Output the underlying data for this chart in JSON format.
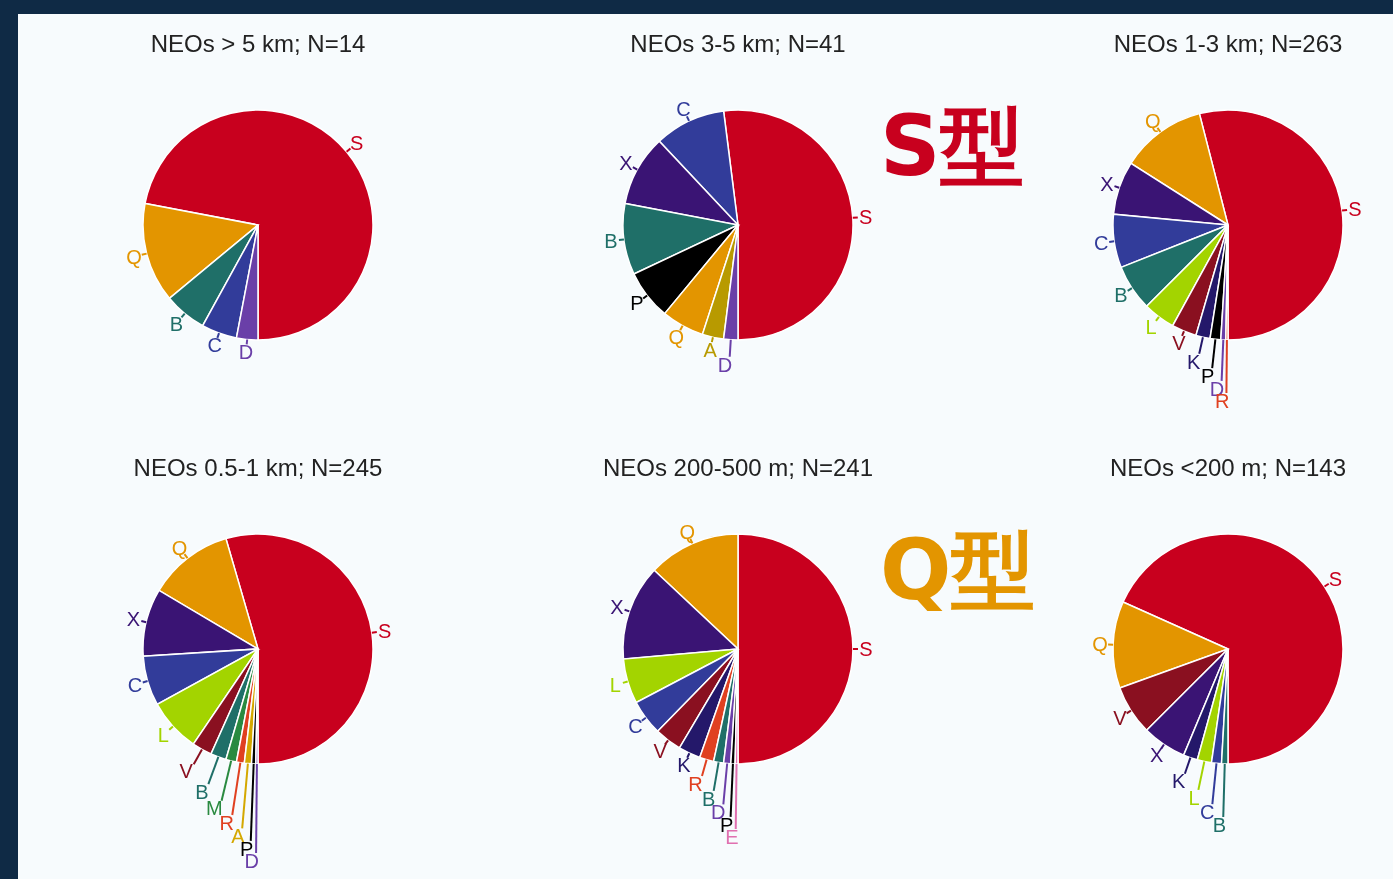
{
  "chart_data": [
    {
      "type": "pie",
      "title": "NEOs > 5 km;  N=14",
      "categories": [
        "S",
        "Q",
        "B",
        "C",
        "D"
      ],
      "values": [
        72,
        14,
        6,
        5,
        3
      ],
      "colors": [
        "#c8001e",
        "#e39500",
        "#1f6f68",
        "#323c9a",
        "#6a3fa8"
      ]
    },
    {
      "type": "pie",
      "title": "NEOs 3-5 km;  N=41",
      "categories": [
        "S",
        "C",
        "X",
        "B",
        "P",
        "Q",
        "A",
        "D"
      ],
      "values": [
        52,
        10,
        10,
        10,
        7,
        6,
        3,
        2
      ],
      "colors": [
        "#c8001e",
        "#323c9a",
        "#3a1474",
        "#1f6f68",
        "#000000",
        "#e39500",
        "#b89a00",
        "#6a3fa8"
      ],
      "annotations": [
        "S型"
      ]
    },
    {
      "type": "pie",
      "title": "NEOs 1-3 km;  N=263",
      "categories": [
        "S",
        "Q",
        "X",
        "C",
        "B",
        "L",
        "V",
        "K",
        "P",
        "D",
        "R"
      ],
      "values": [
        54,
        12,
        7.5,
        7.5,
        6.5,
        4.5,
        3.5,
        2,
        1.5,
        0.7,
        0.3
      ],
      "colors": [
        "#c8001e",
        "#e39500",
        "#3a1474",
        "#323c9a",
        "#1f6f68",
        "#a3d400",
        "#8a1020",
        "#24186a",
        "#000000",
        "#6a3fa8",
        "#e04020"
      ]
    },
    {
      "type": "pie",
      "title": "NEOs 0.5-1 km;  N=245",
      "categories": [
        "S",
        "Q",
        "X",
        "C",
        "L",
        "V",
        "B",
        "M",
        "R",
        "A",
        "P",
        "D"
      ],
      "values": [
        54.5,
        12,
        9.5,
        7,
        7.5,
        2.8,
        2.2,
        1.5,
        1.1,
        1,
        0.6,
        0.3
      ],
      "colors": [
        "#c8001e",
        "#e39500",
        "#3a1474",
        "#323c9a",
        "#a3d400",
        "#8a1020",
        "#1f6f68",
        "#2a8a40",
        "#e04020",
        "#d4a800",
        "#000000",
        "#6a3fa8"
      ]
    },
    {
      "type": "pie",
      "title": "NEOs 200-500 m;  N=241",
      "categories": [
        "S",
        "Q",
        "X",
        "L",
        "C",
        "V",
        "K",
        "R",
        "B",
        "D",
        "P",
        "E"
      ],
      "values": [
        50,
        13,
        13.4,
        6.3,
        5,
        3.8,
        3.1,
        2,
        1.4,
        1,
        0.6,
        0.4
      ],
      "colors": [
        "#c8001e",
        "#e39500",
        "#3a1474",
        "#a3d400",
        "#323c9a",
        "#8a1020",
        "#24186a",
        "#e04020",
        "#1f6f68",
        "#6a3fa8",
        "#000000",
        "#e070b0"
      ],
      "annotations": [
        "Q型"
      ]
    },
    {
      "type": "pie",
      "title": "NEOs <200 m;  N=143",
      "categories": [
        "S",
        "Q",
        "V",
        "X",
        "K",
        "L",
        "C",
        "B"
      ],
      "values": [
        68.3,
        12.2,
        7,
        6.2,
        2,
        2,
        1.4,
        0.9
      ],
      "colors": [
        "#c8001e",
        "#e39500",
        "#8a1020",
        "#3a1474",
        "#24186a",
        "#a3d400",
        "#323c9a",
        "#1f6f68"
      ]
    }
  ]
}
